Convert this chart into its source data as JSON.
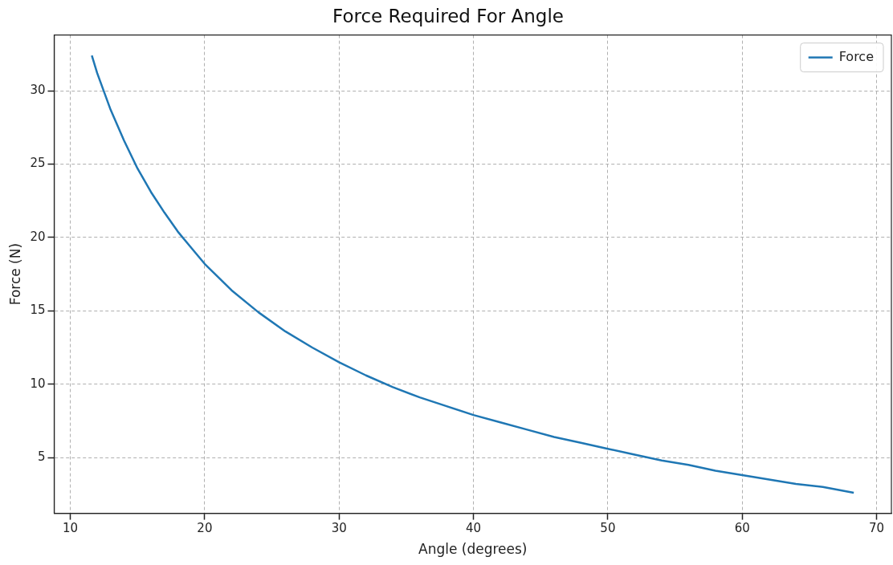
{
  "chart_data": {
    "type": "line",
    "title": "Force Required For Angle",
    "xlabel": "Angle (degrees)",
    "ylabel": "Force (N)",
    "xlim": [
      8.8,
      71.1
    ],
    "ylim": [
      1.2,
      33.8
    ],
    "xticks": [
      10,
      20,
      30,
      40,
      50,
      60,
      70
    ],
    "yticks": [
      5,
      10,
      15,
      20,
      25,
      30
    ],
    "grid": true,
    "legend": "top right",
    "line_style": "solid",
    "marker": "none",
    "series": [
      {
        "name": "Force",
        "color": "#1f77b4",
        "x": [
          11.6,
          12,
          13,
          14,
          15,
          16,
          17,
          18,
          19,
          20,
          22,
          24,
          26,
          28,
          30,
          32,
          34,
          36,
          38,
          40,
          42,
          44,
          46,
          48,
          50,
          52,
          54,
          56,
          58,
          60,
          62,
          64,
          66,
          68.3
        ],
        "values": [
          32.4,
          31.2,
          28.7,
          26.6,
          24.7,
          23.1,
          21.7,
          20.4,
          19.3,
          18.2,
          16.4,
          14.9,
          13.6,
          12.5,
          11.5,
          10.6,
          9.8,
          9.1,
          8.5,
          7.9,
          7.4,
          6.9,
          6.4,
          6.0,
          5.6,
          5.2,
          4.8,
          4.5,
          4.1,
          3.8,
          3.5,
          3.2,
          3.0,
          2.6
        ]
      }
    ]
  }
}
